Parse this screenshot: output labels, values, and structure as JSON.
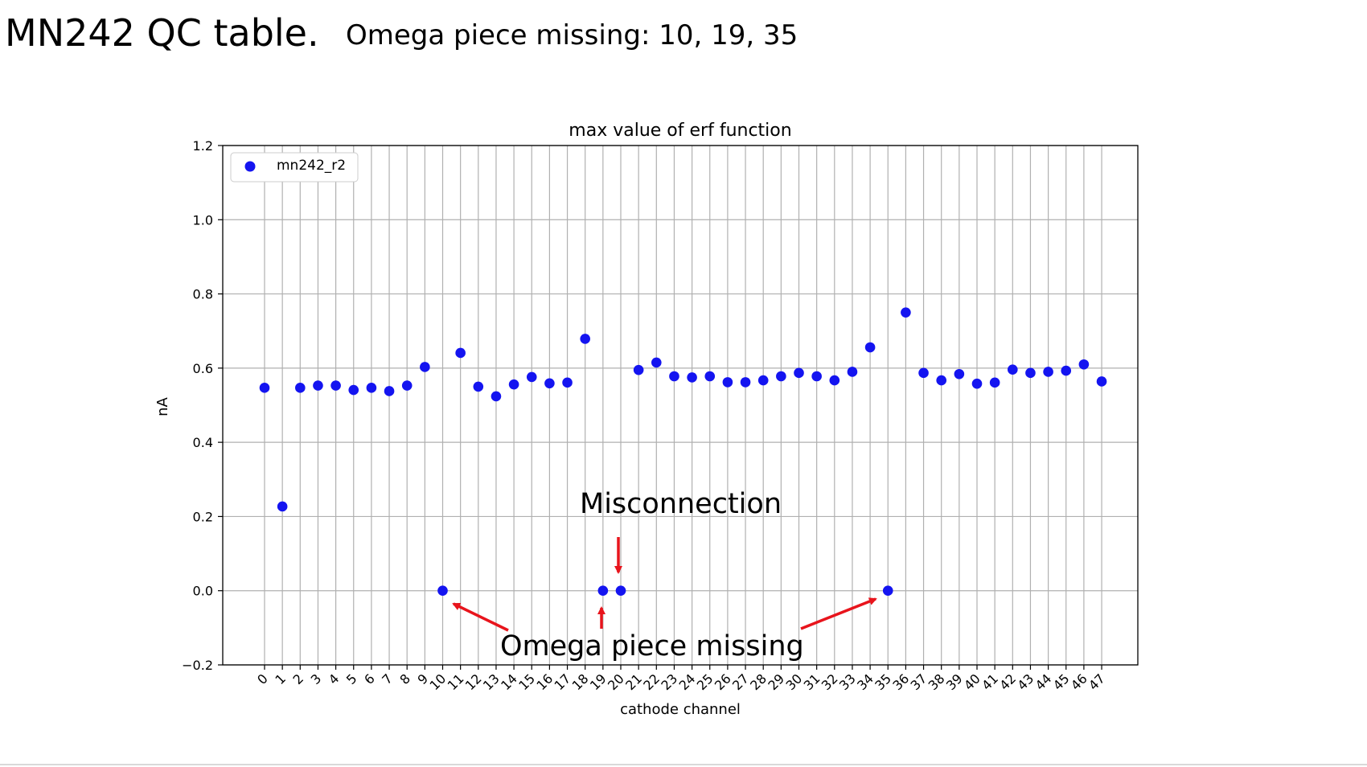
{
  "slide": {
    "title": "MN242 QC table.",
    "subtitle": "Omega piece missing: 10, 19, 35"
  },
  "annotations": {
    "misconnection": "Misconnection",
    "omega_missing": "Omega piece missing"
  },
  "colors": {
    "marker": "#1414f0",
    "arrow": "#e8141c",
    "grid": "#b0b0b0"
  },
  "chart_data": {
    "type": "scatter",
    "title": "max value of erf function",
    "xlabel": "cathode channel",
    "ylabel": "nA",
    "ylim": [
      -0.2,
      1.2
    ],
    "yticks": [
      -0.2,
      0.0,
      0.2,
      0.4,
      0.6,
      0.8,
      1.0,
      1.2
    ],
    "ytick_labels": [
      "−0.2",
      "0.0",
      "0.2",
      "0.4",
      "0.6",
      "0.8",
      "1.0",
      "1.2"
    ],
    "grid": true,
    "legend_position": "top-left",
    "series": [
      {
        "name": "mn242_r2",
        "x": [
          0,
          1,
          2,
          3,
          4,
          5,
          6,
          7,
          8,
          9,
          10,
          11,
          12,
          13,
          14,
          15,
          16,
          17,
          18,
          19,
          20,
          21,
          22,
          23,
          24,
          25,
          26,
          27,
          28,
          29,
          30,
          31,
          32,
          33,
          34,
          35,
          36,
          37,
          38,
          39,
          40,
          41,
          42,
          43,
          44,
          45,
          46,
          47
        ],
        "y": [
          0.547,
          0.227,
          0.547,
          0.553,
          0.553,
          0.541,
          0.547,
          0.538,
          0.553,
          0.603,
          0.0,
          0.641,
          0.55,
          0.524,
          0.556,
          0.576,
          0.559,
          0.561,
          0.679,
          0.0,
          0.0,
          0.595,
          0.615,
          0.578,
          0.575,
          0.578,
          0.562,
          0.562,
          0.567,
          0.578,
          0.587,
          0.578,
          0.567,
          0.59,
          0.656,
          0.0,
          0.75,
          0.587,
          0.567,
          0.584,
          0.558,
          0.561,
          0.596,
          0.587,
          0.59,
          0.593,
          0.61,
          0.564
        ]
      }
    ]
  }
}
